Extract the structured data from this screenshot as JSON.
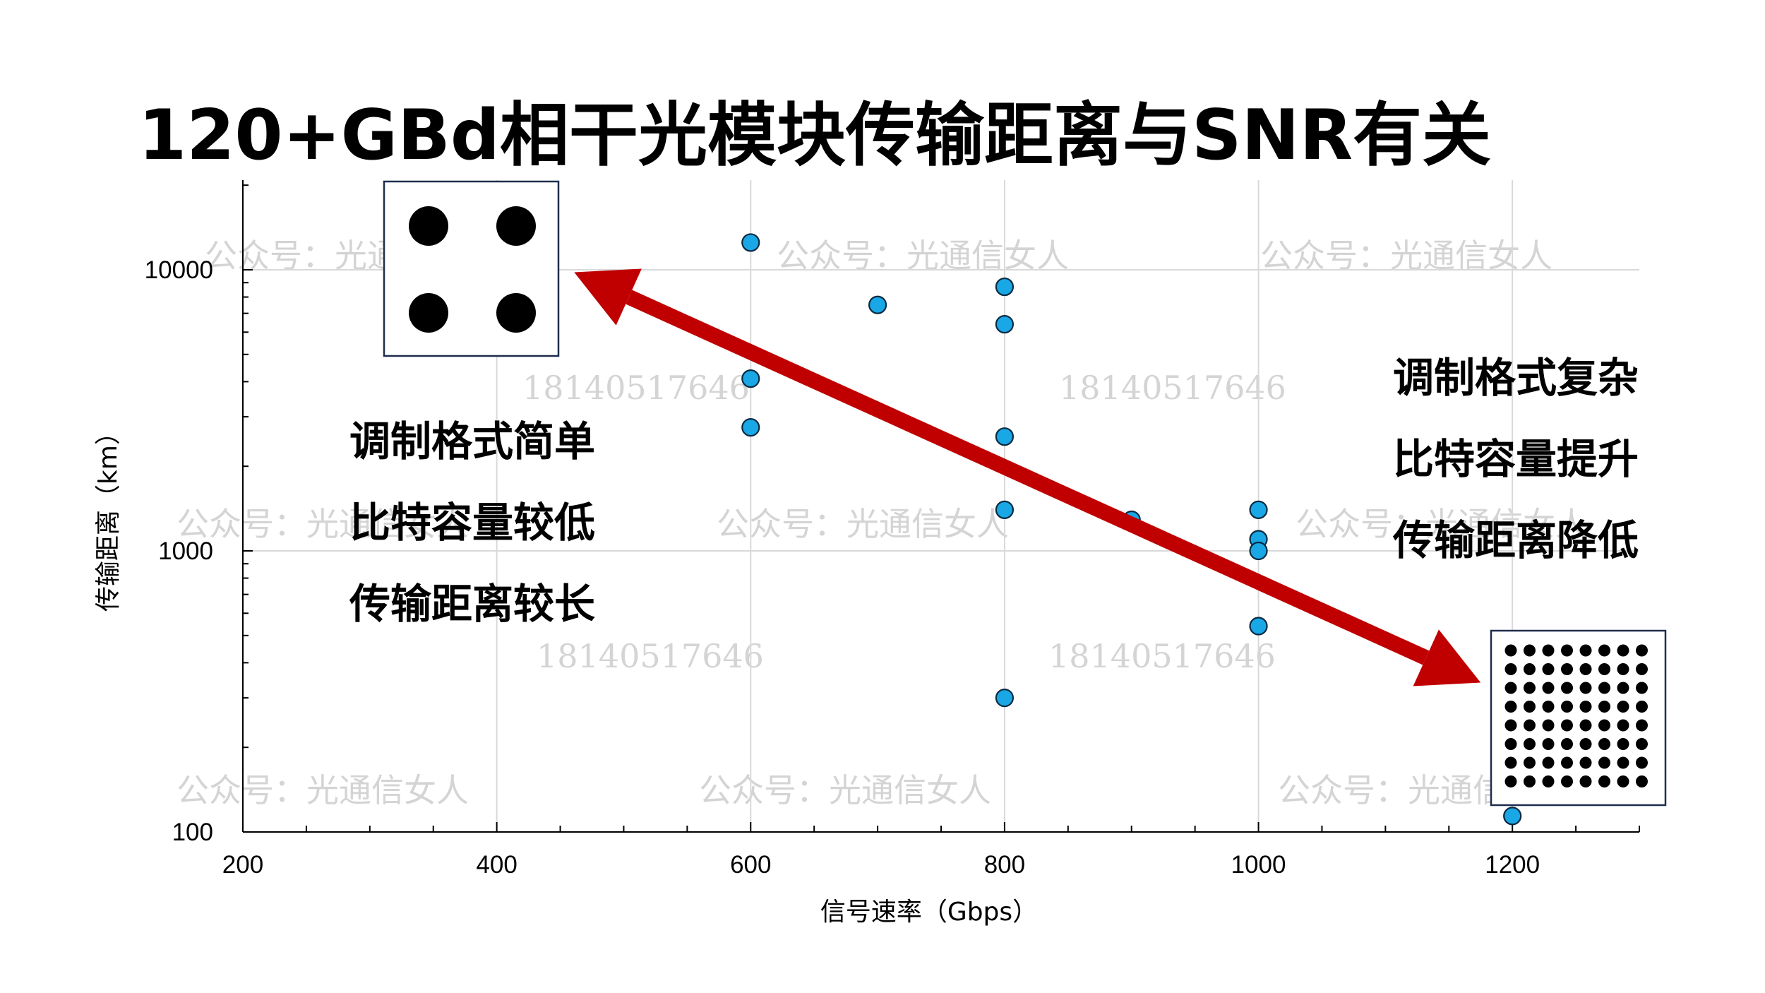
{
  "title": "120+GBd相干光模块传输距离与SNR有关",
  "chart_data": {
    "type": "scatter",
    "xlabel": "信号速率（Gbps）",
    "ylabel": "传输距离（km）",
    "xlim": [
      200,
      1300
    ],
    "ylim": [
      100,
      20000
    ],
    "y_scale": "log",
    "x_ticks": [
      "200",
      "400",
      "600",
      "800",
      "1000",
      "1200"
    ],
    "y_ticks": [
      "100",
      "1000",
      "10000"
    ],
    "grid": true,
    "point_color": "#1aa7e6",
    "points": [
      {
        "x": 600,
        "y": 12500
      },
      {
        "x": 600,
        "y": 4100
      },
      {
        "x": 600,
        "y": 2750
      },
      {
        "x": 700,
        "y": 7500
      },
      {
        "x": 800,
        "y": 8700
      },
      {
        "x": 800,
        "y": 6400
      },
      {
        "x": 800,
        "y": 2550
      },
      {
        "x": 800,
        "y": 1400
      },
      {
        "x": 800,
        "y": 300
      },
      {
        "x": 900,
        "y": 1290
      },
      {
        "x": 1000,
        "y": 1400
      },
      {
        "x": 1000,
        "y": 1100
      },
      {
        "x": 1000,
        "y": 1000
      },
      {
        "x": 1000,
        "y": 540
      },
      {
        "x": 1200,
        "y": 114
      }
    ],
    "trend_arrow": {
      "from": {
        "x": 1175,
        "y": 340
      },
      "to": {
        "x": 461,
        "y": 9800
      },
      "color": "#c00000"
    },
    "annotations_left": [
      "调制格式简单",
      "比特容量较低",
      "传输距离较长"
    ],
    "annotations_right": [
      "调制格式复杂",
      "比特容量提升",
      "传输距离降低"
    ],
    "constellation_left_icon": "qpsk-constellation-icon",
    "constellation_right_icon": "64qam-constellation-icon"
  },
  "watermarks": {
    "account": "公众号：光通信女人",
    "phone": "18140517646"
  }
}
